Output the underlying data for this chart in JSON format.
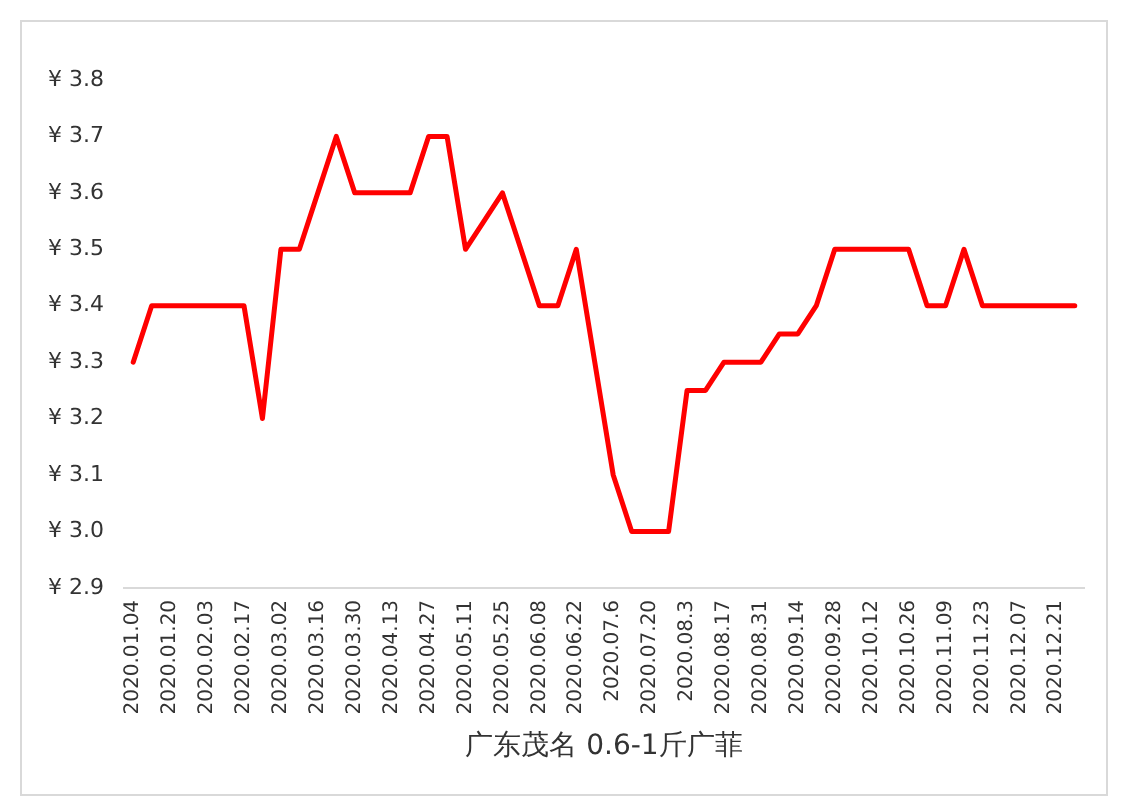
{
  "chart_data": {
    "type": "line",
    "xlabel": "广东茂名 0.6-1斤广菲",
    "categories": [
      "2020.01.04",
      null,
      "2020.01.20",
      null,
      "2020.02.03",
      null,
      "2020.02.17",
      null,
      "2020.03.02",
      null,
      "2020.03.16",
      null,
      "2020.03.30",
      null,
      "2020.04.13",
      null,
      "2020.04.27",
      null,
      "2020.05.11",
      null,
      "2020.05.25",
      null,
      "2020.06.08",
      null,
      "2020.06.22",
      null,
      "2020.07.6",
      null,
      "2020.07.20",
      null,
      "2020.08.3",
      null,
      "2020.08.17",
      null,
      "2020.08.31",
      null,
      "2020.09.14",
      null,
      "2020.09.28",
      null,
      "2020.10.12",
      null,
      "2020.10.26",
      null,
      "2020.11.09",
      null,
      "2020.11.23",
      null,
      "2020.12.07",
      null,
      "2020.12.21",
      null
    ],
    "series": [
      {
        "color": "#ff0000",
        "values": [
          3.3,
          3.4,
          3.4,
          3.4,
          3.4,
          3.4,
          3.4,
          3.2,
          3.5,
          3.5,
          3.6,
          3.7,
          3.6,
          3.6,
          3.6,
          3.6,
          3.7,
          3.7,
          3.5,
          3.55,
          3.6,
          3.5,
          3.4,
          3.4,
          3.5,
          3.3,
          3.1,
          3.0,
          3.0,
          3.0,
          3.25,
          3.25,
          3.3,
          3.3,
          3.3,
          3.35,
          3.35,
          3.4,
          3.5,
          3.5,
          3.5,
          3.5,
          3.5,
          3.4,
          3.4,
          3.5,
          3.4,
          3.4,
          3.4,
          3.4,
          3.4,
          3.4
        ]
      }
    ],
    "ylim": [
      2.9,
      3.8
    ],
    "yticks": [
      {
        "value": 2.9,
        "label": "¥ 2.9"
      },
      {
        "value": 3.0,
        "label": "¥ 3.0"
      },
      {
        "value": 3.1,
        "label": "¥ 3.1"
      },
      {
        "value": 3.2,
        "label": "¥ 3.2"
      },
      {
        "value": 3.3,
        "label": "¥ 3.3"
      },
      {
        "value": 3.4,
        "label": "¥ 3.4"
      },
      {
        "value": 3.5,
        "label": "¥ 3.5"
      },
      {
        "value": 3.6,
        "label": "¥ 3.6"
      },
      {
        "value": 3.7,
        "label": "¥ 3.7"
      },
      {
        "value": 3.8,
        "label": "¥ 3.8"
      }
    ],
    "grid": false,
    "legend": false,
    "marker": "none",
    "line_style": "solid"
  }
}
